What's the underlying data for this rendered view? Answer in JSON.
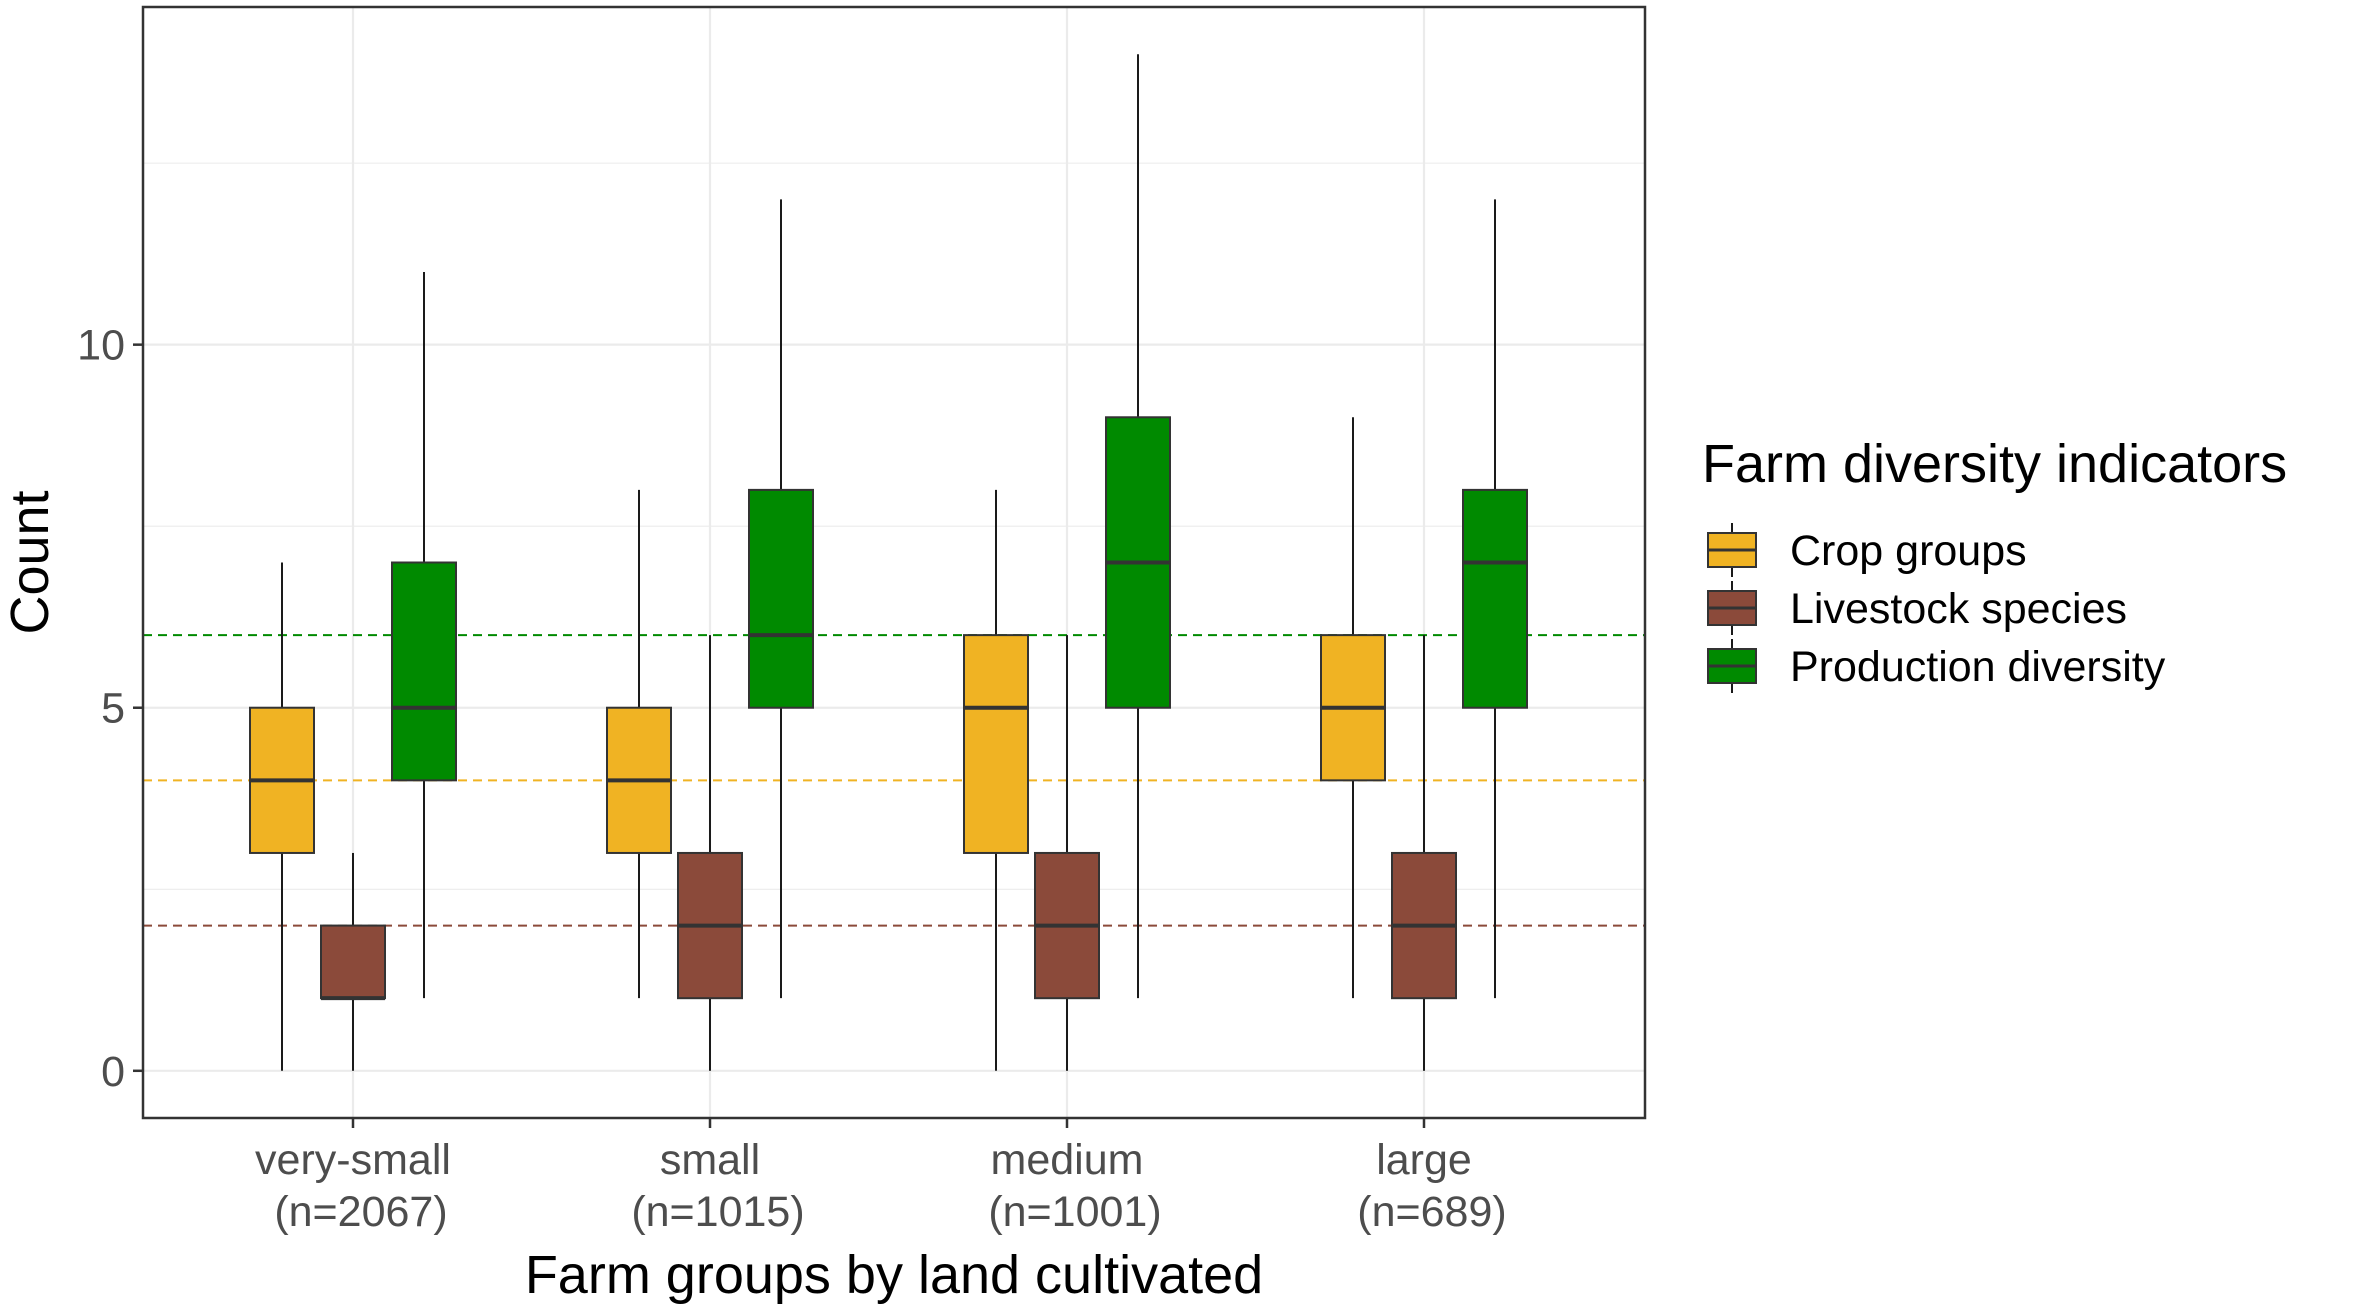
{
  "chart_data": {
    "type": "boxplot",
    "xlabel": "Farm groups by land cultivated",
    "ylabel": "Count",
    "categories": [
      {
        "line1": "very-small",
        "line2": "(n=2067)"
      },
      {
        "line1": "small",
        "line2": "(n=1015)"
      },
      {
        "line1": "medium",
        "line2": "(n=1001)"
      },
      {
        "line1": "large",
        "line2": "(n=689)"
      }
    ],
    "yticks": [
      0,
      5,
      10
    ],
    "ytick_labels": [
      "0",
      "5",
      "10"
    ],
    "ylim": [
      -0.65,
      14.65
    ],
    "grid": true,
    "legend": {
      "title": "Farm diversity indicators",
      "position": "right"
    },
    "series": [
      {
        "name": "Crop groups",
        "color": "#F0B323",
        "reference_line": 4,
        "boxes": [
          {
            "min": 0,
            "q1": 3,
            "median": 4,
            "q3": 5,
            "max": 7
          },
          {
            "min": 1,
            "q1": 3,
            "median": 4,
            "q3": 5,
            "max": 8
          },
          {
            "min": 0,
            "q1": 3,
            "median": 5,
            "q3": 6,
            "max": 8
          },
          {
            "min": 1,
            "q1": 4,
            "median": 5,
            "q3": 6,
            "max": 9
          }
        ]
      },
      {
        "name": "Livestock species",
        "color": "#8B4A3A",
        "reference_line": 2,
        "boxes": [
          {
            "min": 0,
            "q1": 1,
            "median": 1,
            "q3": 2,
            "max": 3
          },
          {
            "min": 0,
            "q1": 1,
            "median": 2,
            "q3": 3,
            "max": 6
          },
          {
            "min": 0,
            "q1": 1,
            "median": 2,
            "q3": 3,
            "max": 6
          },
          {
            "min": 0,
            "q1": 1,
            "median": 2,
            "q3": 3,
            "max": 6
          }
        ]
      },
      {
        "name": "Production diversity",
        "color": "#008A00",
        "reference_line": 6,
        "boxes": [
          {
            "min": 1,
            "q1": 4,
            "median": 5,
            "q3": 7,
            "max": 11
          },
          {
            "min": 1,
            "q1": 5,
            "median": 6,
            "q3": 8,
            "max": 12
          },
          {
            "min": 1,
            "q1": 5,
            "median": 7,
            "q3": 9,
            "max": 14
          },
          {
            "min": 1,
            "q1": 5,
            "median": 7,
            "q3": 8,
            "max": 12
          }
        ]
      }
    ]
  }
}
